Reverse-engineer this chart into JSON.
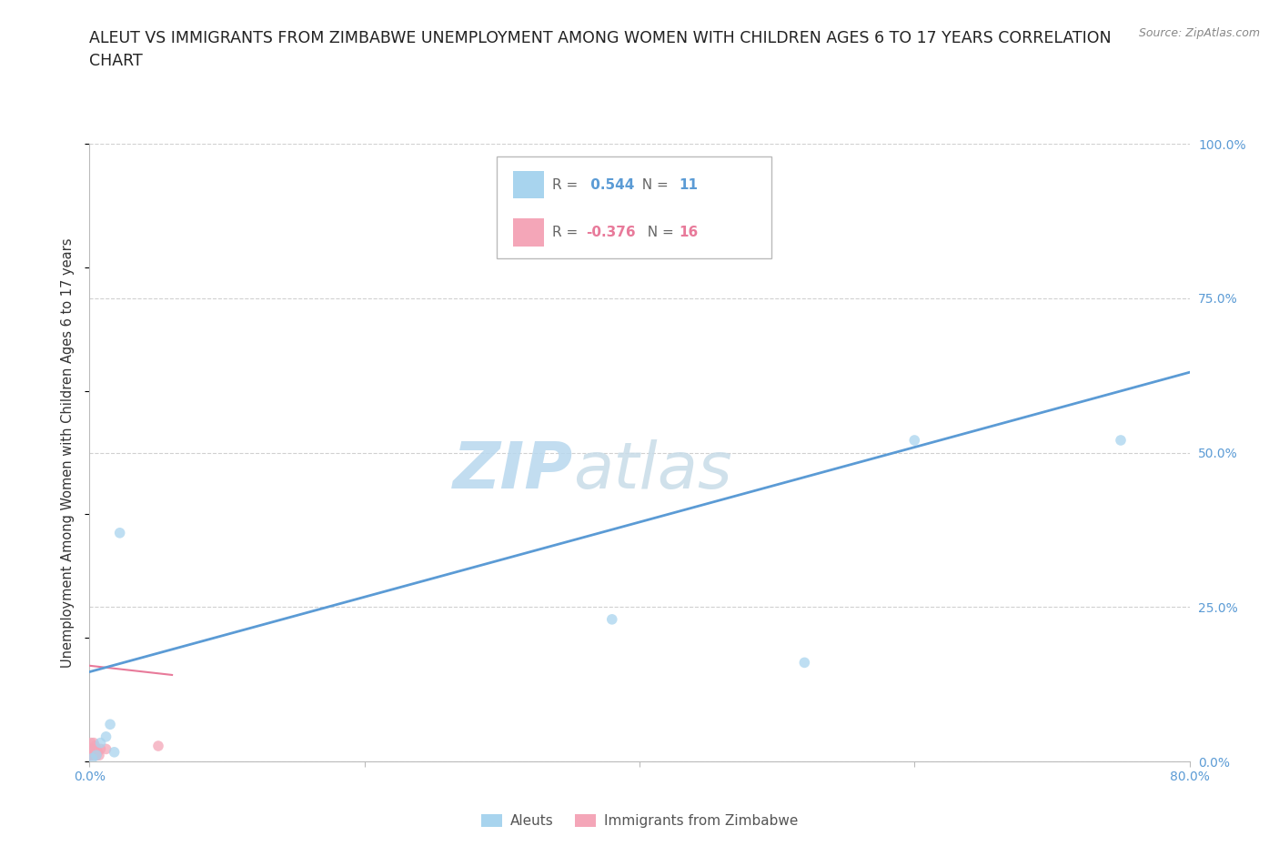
{
  "title_line1": "ALEUT VS IMMIGRANTS FROM ZIMBABWE UNEMPLOYMENT AMONG WOMEN WITH CHILDREN AGES 6 TO 17 YEARS CORRELATION",
  "title_line2": "CHART",
  "source": "Source: ZipAtlas.com",
  "ylabel": "Unemployment Among Women with Children Ages 6 to 17 years",
  "xlim": [
    0.0,
    0.8
  ],
  "ylim": [
    0.0,
    1.0
  ],
  "xticks": [
    0.0,
    0.2,
    0.4,
    0.6,
    0.8
  ],
  "xticklabels": [
    "0.0%",
    "",
    "",
    "",
    "80.0%"
  ],
  "ytick_positions": [
    0.0,
    0.25,
    0.5,
    0.75,
    1.0
  ],
  "ytick_labels_right": [
    "0.0%",
    "25.0%",
    "50.0%",
    "75.0%",
    "100.0%"
  ],
  "aleut_color": "#a8d4ee",
  "zimbabwe_color": "#f4a6b8",
  "trendline_aleut_color": "#5b9bd5",
  "trendline_zimbabwe_color": "#e87a9a",
  "R_aleut": 0.544,
  "N_aleut": 11,
  "R_zimbabwe": -0.376,
  "N_zimbabwe": 16,
  "watermark_zip": "ZIP",
  "watermark_atlas": "atlas",
  "background_color": "#ffffff",
  "grid_color": "#d0d0d0",
  "aleut_points_x": [
    0.002,
    0.005,
    0.008,
    0.012,
    0.015,
    0.018,
    0.022,
    0.38,
    0.52,
    0.6,
    0.75
  ],
  "aleut_points_y": [
    0.005,
    0.01,
    0.03,
    0.04,
    0.06,
    0.015,
    0.37,
    0.23,
    0.16,
    0.52,
    0.52
  ],
  "zimbabwe_points_x": [
    0.0,
    0.0,
    0.001,
    0.001,
    0.002,
    0.003,
    0.003,
    0.004,
    0.004,
    0.005,
    0.005,
    0.006,
    0.007,
    0.008,
    0.012,
    0.05
  ],
  "zimbabwe_points_y": [
    0.01,
    0.02,
    0.01,
    0.03,
    0.02,
    0.01,
    0.03,
    0.015,
    0.025,
    0.01,
    0.02,
    0.015,
    0.01,
    0.02,
    0.02,
    0.025
  ],
  "aleut_trendline_x": [
    0.0,
    0.8
  ],
  "aleut_trendline_y": [
    0.145,
    0.63
  ],
  "zimbabwe_trendline_x": [
    0.0,
    0.06
  ],
  "zimbabwe_trendline_y": [
    0.155,
    0.14
  ],
  "title_fontsize": 12.5,
  "axis_label_fontsize": 10.5,
  "tick_fontsize": 10,
  "legend_fontsize": 11,
  "source_fontsize": 9,
  "watermark_fontsize_zip": 52,
  "watermark_fontsize_atlas": 52,
  "watermark_color": "#c8e0f0",
  "dot_size": 70,
  "dot_alpha": 0.75
}
